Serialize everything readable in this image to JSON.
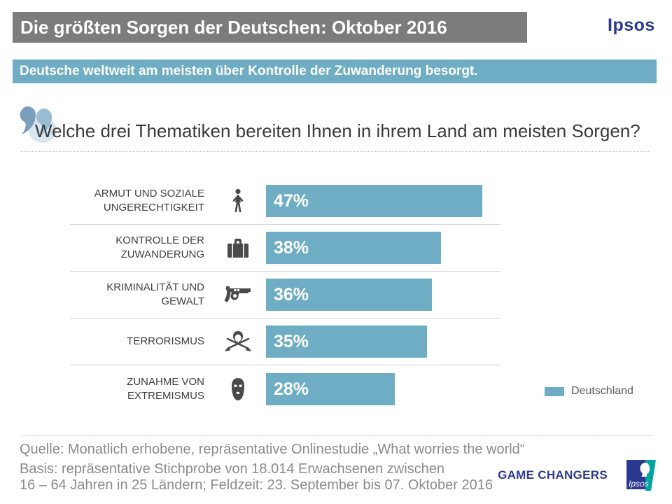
{
  "header": {
    "title": "Die größten Sorgen der Deutschen: Oktober 2016",
    "brand": "Ipsos"
  },
  "subtitle": {
    "text": "Deutsche weltweit am meisten über Kontrolle der Zuwanderung besorgt."
  },
  "question": {
    "text": "Welche drei Thematiken bereiten Ihnen in ihrem Land am meisten Sorgen?"
  },
  "rows": [
    {
      "label_line1": "ARMUT UND SOZIALE",
      "label_line2": "UNGERECHTIGKEIT",
      "value_label": "47%",
      "icon": "person-icon"
    },
    {
      "label_line1": "KONTROLLE DER",
      "label_line2": "ZUWANDERUNG",
      "value_label": "38%",
      "icon": "suitcase-icon"
    },
    {
      "label_line1": "KRIMINALITÄT UND",
      "label_line2": "GEWALT",
      "value_label": "36%",
      "icon": "revolver-icon"
    },
    {
      "label_line1": "TERRORISMUS",
      "label_line2": "",
      "value_label": "35%",
      "icon": "terrorist-icon"
    },
    {
      "label_line1": "ZUNAHME VON",
      "label_line2": "EXTREMISMUS",
      "value_label": "28%",
      "icon": "balaclava-icon"
    }
  ],
  "chart_data": {
    "type": "bar",
    "orientation": "horizontal",
    "categories": [
      "ARMUT UND SOZIALE UNGERECHTIGKEIT",
      "KONTROLLE DER ZUWANDERUNG",
      "KRIMINALITÄT UND GEWALT",
      "TERRORISMUS",
      "ZUNAHME VON EXTREMISMUS"
    ],
    "values": [
      47,
      38,
      36,
      35,
      28
    ],
    "value_labels": [
      "47%",
      "38%",
      "36%",
      "35%",
      "28%"
    ],
    "title": "Die größten Sorgen der Deutschen: Oktober 2016",
    "xlabel": "",
    "ylabel": "",
    "xlim": [
      0,
      51
    ],
    "grid": false,
    "bar_color": "#6FADC5",
    "legend": {
      "label": "Deutschland",
      "color": "#6FADC5",
      "position": "right"
    }
  },
  "footer": {
    "source": "Quelle: Monatlich erhobene, repräsentative Onlinestudie „What worries the world“",
    "basis_line1": "Basis: repräsentative Stichprobe von 18.014 Erwachsenen zwischen",
    "basis_line2": "16 – 64 Jahren in 25 Ländern; Feldzeit: 23. September bis 07. Oktober 2016",
    "tagline": "GAME CHANGERS",
    "logo_text": "Ipsos"
  },
  "colors": {
    "header_gray": "#7C7C7C",
    "accent_teal": "#6FADC5",
    "ipsos_blue": "#2B3990",
    "ipsos_teal": "#00A5A0",
    "label_text": "#3F3F3F",
    "footer_text": "#8A8A8A"
  }
}
